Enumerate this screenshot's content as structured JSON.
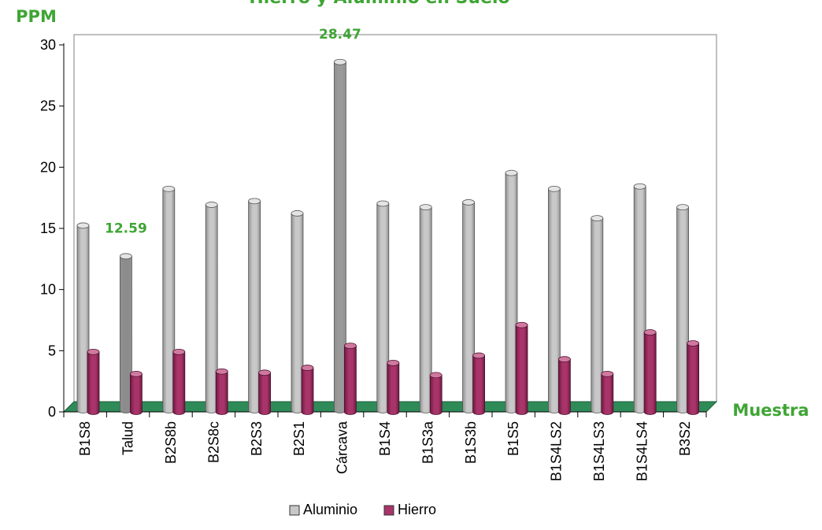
{
  "chart_data": {
    "type": "bar",
    "title": "Hierro y Aluminio en Suelo",
    "ylabel": "PPM",
    "xlabel": "Muestra",
    "ylim": [
      0,
      30
    ],
    "yticks": [
      0,
      5,
      10,
      15,
      20,
      25,
      30
    ],
    "grid": false,
    "legend_position": "bottom",
    "categories": [
      "B1S8",
      "Talud",
      "B2S8b",
      "B2S8c",
      "B2S3",
      "B2S1",
      "Cárcava",
      "B1S4",
      "B1S3a",
      "B1S3b",
      "B1S5",
      "B1S4LS2",
      "B1S4LS3",
      "B1S4LS4",
      "B3S2"
    ],
    "series": [
      {
        "name": "Aluminio",
        "color": "#c8c8c8",
        "values": [
          15.1,
          12.59,
          18.1,
          16.8,
          17.1,
          16.1,
          28.47,
          16.9,
          16.6,
          17.0,
          19.4,
          18.1,
          15.7,
          18.3,
          16.6
        ]
      },
      {
        "name": "Hierro",
        "color": "#9b2c5e",
        "values": [
          4.9,
          3.1,
          4.9,
          3.3,
          3.2,
          3.6,
          5.4,
          4.0,
          3.0,
          4.6,
          7.1,
          4.3,
          3.1,
          6.5,
          5.6
        ]
      }
    ],
    "annotations": [
      {
        "category": "Talud",
        "text": "12.59"
      },
      {
        "category": "Cárcava",
        "text": "28.47"
      }
    ]
  }
}
